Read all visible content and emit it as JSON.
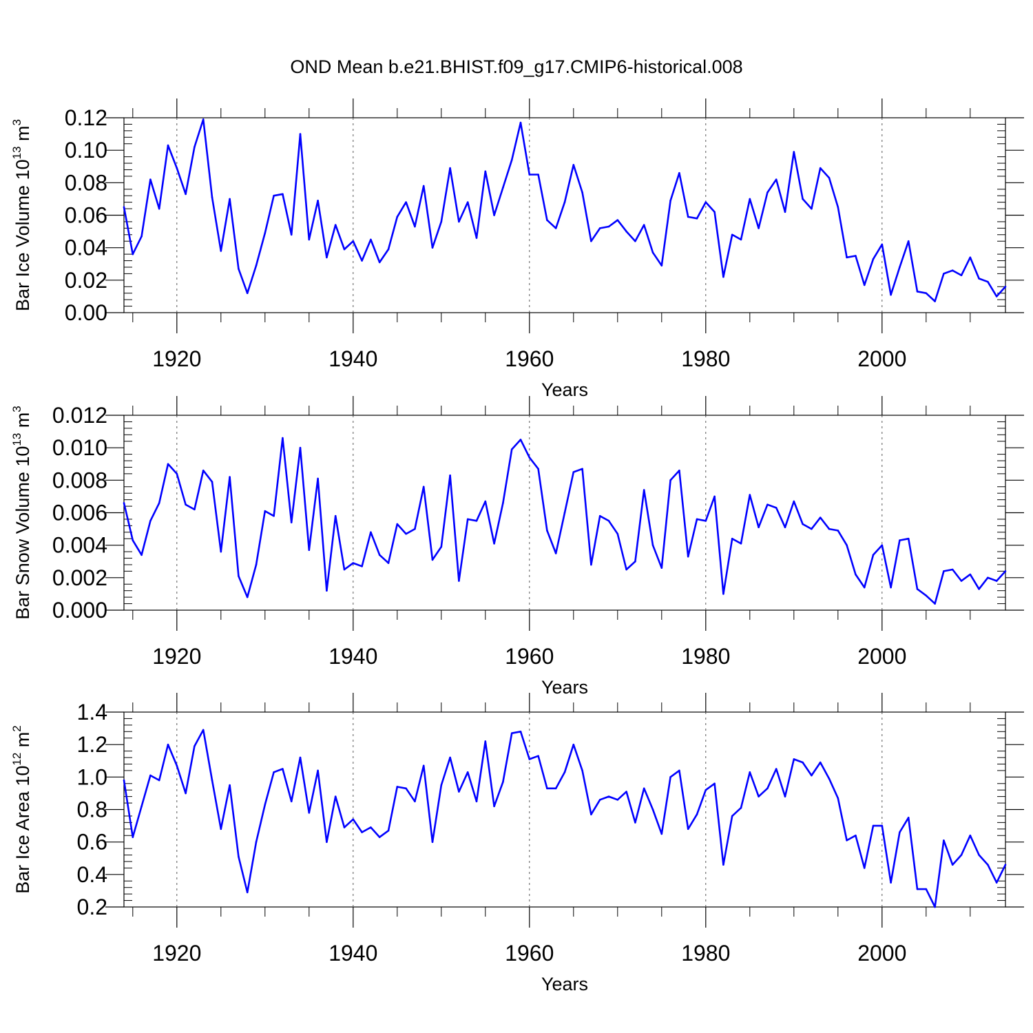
{
  "title": "OND Mean b.e21.BHIST.f09_g17.CMIP6-historical.008",
  "colors": {
    "line": "#0000ff",
    "axis": "#000000",
    "grid": "#555555"
  },
  "chart_data": [
    {
      "type": "line",
      "ylabel": {
        "base": "Bar Ice Volume 10",
        "exp": "13",
        "unit": " m",
        "unit_exp": "3"
      },
      "xlabel": "Years",
      "xlim": [
        1914,
        2014
      ],
      "ylim": [
        0.0,
        0.12
      ],
      "yticks": [
        0.0,
        0.02,
        0.04,
        0.06,
        0.08,
        0.1,
        0.12
      ],
      "yticklabels": [
        "0.00",
        "0.02",
        "0.04",
        "0.06",
        "0.08",
        "0.10",
        "0.12"
      ],
      "xticks": [
        1920,
        1940,
        1960,
        1980,
        2000
      ],
      "xticklabels": [
        "1920",
        "1940",
        "1960",
        "1980",
        "2000"
      ],
      "grid": "vertical-dashed",
      "x_start": 1914,
      "values": [
        0.065,
        0.036,
        0.047,
        0.082,
        0.064,
        0.103,
        0.089,
        0.073,
        0.102,
        0.119,
        0.071,
        0.038,
        0.07,
        0.027,
        0.012,
        0.029,
        0.049,
        0.072,
        0.073,
        0.048,
        0.11,
        0.045,
        0.069,
        0.034,
        0.054,
        0.039,
        0.044,
        0.032,
        0.045,
        0.031,
        0.039,
        0.059,
        0.068,
        0.053,
        0.078,
        0.04,
        0.056,
        0.089,
        0.056,
        0.068,
        0.046,
        0.087,
        0.06,
        0.077,
        0.094,
        0.117,
        0.085,
        0.085,
        0.057,
        0.052,
        0.068,
        0.091,
        0.074,
        0.044,
        0.052,
        0.053,
        0.057,
        0.05,
        0.044,
        0.054,
        0.037,
        0.029,
        0.069,
        0.086,
        0.059,
        0.058,
        0.068,
        0.062,
        0.022,
        0.048,
        0.045,
        0.07,
        0.052,
        0.074,
        0.082,
        0.062,
        0.099,
        0.07,
        0.064,
        0.089,
        0.083,
        0.065,
        0.034,
        0.035,
        0.017,
        0.033,
        0.042,
        0.011,
        0.028,
        0.044,
        0.013,
        0.012,
        0.007,
        0.024,
        0.026,
        0.023,
        0.034,
        0.021,
        0.019,
        0.01,
        0.016
      ]
    },
    {
      "type": "line",
      "ylabel": {
        "base": "Bar Snow Volume 10",
        "exp": "13",
        "unit": " m",
        "unit_exp": "3"
      },
      "xlabel": "Years",
      "xlim": [
        1914,
        2014
      ],
      "ylim": [
        0.0,
        0.012
      ],
      "yticks": [
        0.0,
        0.002,
        0.004,
        0.006,
        0.008,
        0.01,
        0.012
      ],
      "yticklabels": [
        "0.000",
        "0.002",
        "0.004",
        "0.006",
        "0.008",
        "0.010",
        "0.012"
      ],
      "xticks": [
        1920,
        1940,
        1960,
        1980,
        2000
      ],
      "xticklabels": [
        "1920",
        "1940",
        "1960",
        "1980",
        "2000"
      ],
      "grid": "vertical-dashed",
      "x_start": 1914,
      "values": [
        0.0066,
        0.0043,
        0.0034,
        0.0055,
        0.0066,
        0.009,
        0.0084,
        0.0065,
        0.0062,
        0.0086,
        0.0079,
        0.0036,
        0.0082,
        0.0021,
        0.0008,
        0.0028,
        0.0061,
        0.0058,
        0.0106,
        0.0054,
        0.01,
        0.0037,
        0.0081,
        0.0012,
        0.0058,
        0.0025,
        0.0029,
        0.0027,
        0.0048,
        0.0034,
        0.0029,
        0.0053,
        0.0047,
        0.005,
        0.0076,
        0.0031,
        0.0039,
        0.0083,
        0.0018,
        0.0056,
        0.0055,
        0.0067,
        0.0041,
        0.0066,
        0.0099,
        0.0105,
        0.0094,
        0.0087,
        0.0049,
        0.0035,
        0.006,
        0.0085,
        0.0087,
        0.0028,
        0.0058,
        0.0055,
        0.0047,
        0.0025,
        0.003,
        0.0074,
        0.004,
        0.0026,
        0.008,
        0.0086,
        0.0033,
        0.0056,
        0.0055,
        0.007,
        0.001,
        0.0044,
        0.0041,
        0.0071,
        0.0051,
        0.0065,
        0.0063,
        0.0051,
        0.0067,
        0.0053,
        0.005,
        0.0057,
        0.005,
        0.0049,
        0.004,
        0.0022,
        0.0014,
        0.0034,
        0.004,
        0.0014,
        0.0043,
        0.0044,
        0.0013,
        0.0009,
        0.0004,
        0.0024,
        0.0025,
        0.0018,
        0.0022,
        0.0013,
        0.002,
        0.0018,
        0.0024
      ]
    },
    {
      "type": "line",
      "ylabel": {
        "base": "Bar Ice Area 10",
        "exp": "12",
        "unit": " m",
        "unit_exp": "2"
      },
      "xlabel": "Years",
      "xlim": [
        1914,
        2014
      ],
      "ylim": [
        0.2,
        1.4
      ],
      "yticks": [
        0.2,
        0.4,
        0.6,
        0.8,
        1.0,
        1.2,
        1.4
      ],
      "yticklabels": [
        "0.2",
        "0.4",
        "0.6",
        "0.8",
        "1.0",
        "1.2",
        "1.4"
      ],
      "xticks": [
        1920,
        1940,
        1960,
        1980,
        2000
      ],
      "xticklabels": [
        "1920",
        "1940",
        "1960",
        "1980",
        "2000"
      ],
      "grid": "vertical-dashed",
      "x_start": 1914,
      "values": [
        0.98,
        0.63,
        0.82,
        1.01,
        0.98,
        1.2,
        1.07,
        0.9,
        1.19,
        1.29,
        0.98,
        0.68,
        0.95,
        0.51,
        0.29,
        0.6,
        0.83,
        1.03,
        1.05,
        0.85,
        1.12,
        0.78,
        1.04,
        0.6,
        0.88,
        0.69,
        0.74,
        0.66,
        0.69,
        0.63,
        0.67,
        0.94,
        0.93,
        0.85,
        1.07,
        0.6,
        0.95,
        1.12,
        0.91,
        1.03,
        0.85,
        1.22,
        0.82,
        0.97,
        1.27,
        1.28,
        1.11,
        1.13,
        0.93,
        0.93,
        1.03,
        1.2,
        1.04,
        0.77,
        0.86,
        0.88,
        0.86,
        0.91,
        0.72,
        0.93,
        0.8,
        0.65,
        1.0,
        1.04,
        0.68,
        0.77,
        0.92,
        0.96,
        0.46,
        0.76,
        0.81,
        1.03,
        0.88,
        0.93,
        1.05,
        0.88,
        1.11,
        1.09,
        1.01,
        1.09,
        0.99,
        0.87,
        0.61,
        0.64,
        0.44,
        0.7,
        0.7,
        0.35,
        0.66,
        0.75,
        0.31,
        0.31,
        0.2,
        0.61,
        0.46,
        0.52,
        0.64,
        0.52,
        0.46,
        0.35,
        0.46
      ]
    }
  ]
}
